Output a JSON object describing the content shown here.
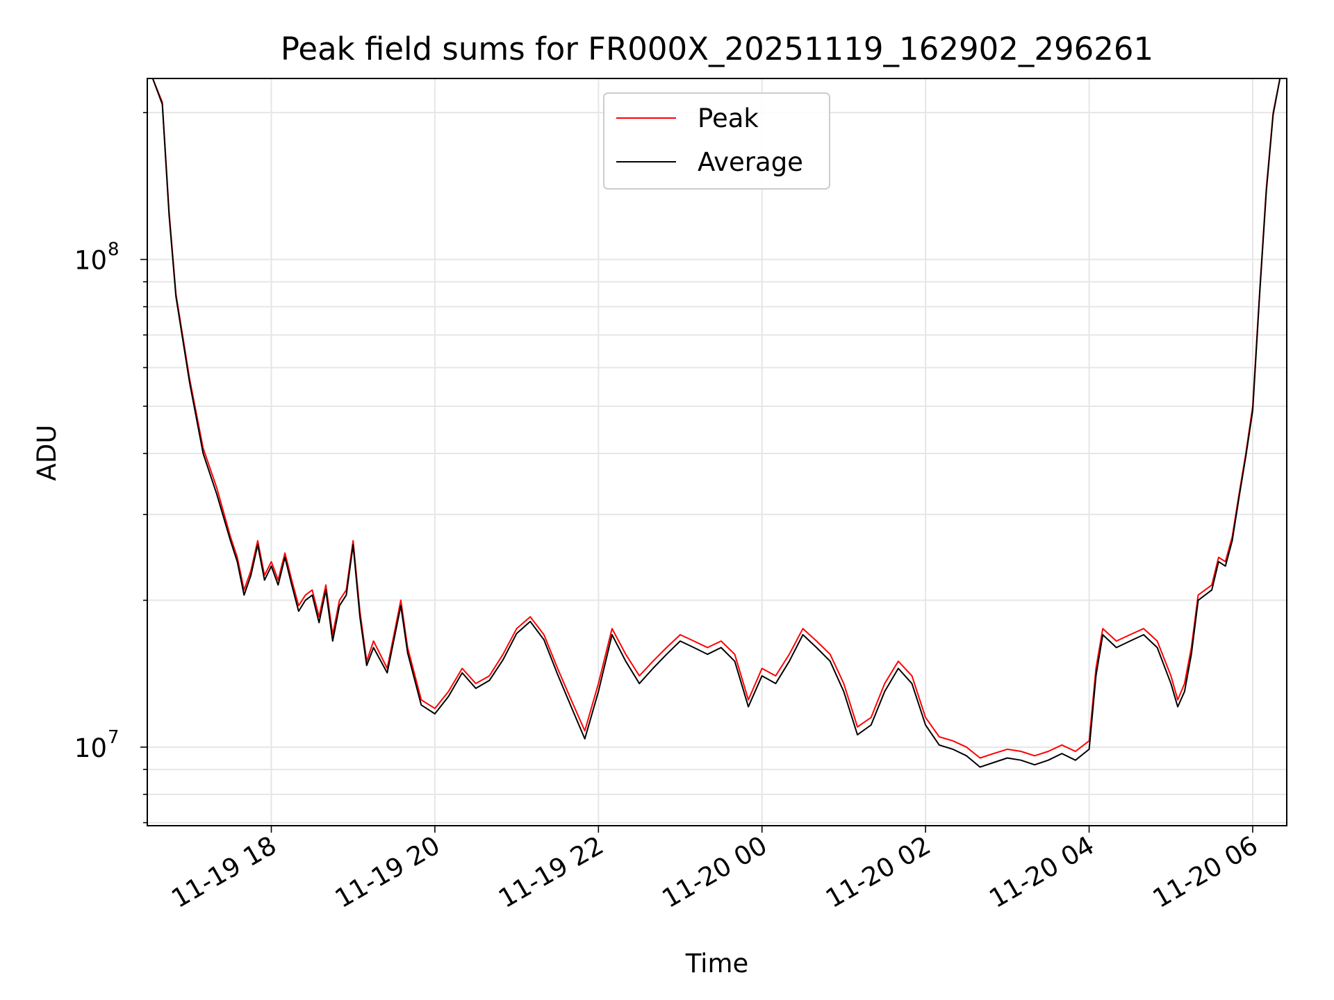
{
  "chart_data": {
    "type": "line",
    "title": "Peak field sums for FR000X_20251119_162902_296261",
    "xlabel": "Time",
    "ylabel": "ADU",
    "yscale": "log",
    "xlim": [
      "2025-11-19 16:29",
      "2025-11-20 06:25"
    ],
    "ylim": [
      6900000,
      235000000
    ],
    "x_ticks": [
      "2025-11-19 18:00",
      "2025-11-19 20:00",
      "2025-11-19 22:00",
      "2025-11-20 00:00",
      "2025-11-20 02:00",
      "2025-11-20 04:00",
      "2025-11-20 06:00"
    ],
    "x_tick_labels": [
      "11-19 18",
      "11-19 20",
      "11-19 22",
      "11-20 00",
      "11-20 02",
      "11-20 04",
      "11-20 06"
    ],
    "y_tick_labels": [
      {
        "value": 10000000,
        "mantissa": "10",
        "exponent": "7"
      },
      {
        "value": 100000000,
        "mantissa": "10",
        "exponent": "8"
      }
    ],
    "grid": true,
    "legend_position": "top-center",
    "series": [
      {
        "name": "Peak",
        "color": "#ff0000",
        "points": [
          [
            "2025-11-19 16:33",
            235000000
          ],
          [
            "2025-11-19 16:40",
            210000000
          ],
          [
            "2025-11-19 16:45",
            125000000
          ],
          [
            "2025-11-19 16:50",
            85000000
          ],
          [
            "2025-11-19 17:00",
            57000000
          ],
          [
            "2025-11-19 17:10",
            41000000
          ],
          [
            "2025-11-19 17:20",
            34000000
          ],
          [
            "2025-11-19 17:30",
            27000000
          ],
          [
            "2025-11-19 17:35",
            24500000
          ],
          [
            "2025-11-19 17:40",
            21000000
          ],
          [
            "2025-11-19 17:45",
            23000000
          ],
          [
            "2025-11-19 17:50",
            26500000
          ],
          [
            "2025-11-19 17:55",
            22500000
          ],
          [
            "2025-11-19 18:00",
            24000000
          ],
          [
            "2025-11-19 18:05",
            22000000
          ],
          [
            "2025-11-19 18:10",
            25000000
          ],
          [
            "2025-11-19 18:15",
            22000000
          ],
          [
            "2025-11-19 18:20",
            19500000
          ],
          [
            "2025-11-19 18:25",
            20500000
          ],
          [
            "2025-11-19 18:30",
            21000000
          ],
          [
            "2025-11-19 18:35",
            18500000
          ],
          [
            "2025-11-19 18:40",
            21500000
          ],
          [
            "2025-11-19 18:45",
            17000000
          ],
          [
            "2025-11-19 18:50",
            20000000
          ],
          [
            "2025-11-19 18:55",
            21000000
          ],
          [
            "2025-11-19 19:00",
            26500000
          ],
          [
            "2025-11-19 19:05",
            19000000
          ],
          [
            "2025-11-19 19:10",
            15000000
          ],
          [
            "2025-11-19 19:15",
            16500000
          ],
          [
            "2025-11-19 19:25",
            14500000
          ],
          [
            "2025-11-19 19:35",
            20000000
          ],
          [
            "2025-11-19 19:40",
            16000000
          ],
          [
            "2025-11-19 19:50",
            12500000
          ],
          [
            "2025-11-19 20:00",
            12000000
          ],
          [
            "2025-11-19 20:10",
            13000000
          ],
          [
            "2025-11-19 20:20",
            14500000
          ],
          [
            "2025-11-19 20:30",
            13500000
          ],
          [
            "2025-11-19 20:40",
            14000000
          ],
          [
            "2025-11-19 20:50",
            15500000
          ],
          [
            "2025-11-19 21:00",
            17500000
          ],
          [
            "2025-11-19 21:10",
            18500000
          ],
          [
            "2025-11-19 21:20",
            17000000
          ],
          [
            "2025-11-19 21:30",
            14500000
          ],
          [
            "2025-11-19 21:40",
            12500000
          ],
          [
            "2025-11-19 21:50",
            10800000
          ],
          [
            "2025-11-19 22:00",
            13500000
          ],
          [
            "2025-11-19 22:10",
            17500000
          ],
          [
            "2025-11-19 22:20",
            15500000
          ],
          [
            "2025-11-19 22:30",
            14000000
          ],
          [
            "2025-11-19 22:40",
            15000000
          ],
          [
            "2025-11-19 22:50",
            16000000
          ],
          [
            "2025-11-19 23:00",
            17000000
          ],
          [
            "2025-11-19 23:10",
            16500000
          ],
          [
            "2025-11-19 23:20",
            16000000
          ],
          [
            "2025-11-19 23:30",
            16500000
          ],
          [
            "2025-11-19 23:40",
            15500000
          ],
          [
            "2025-11-19 23:50",
            12500000
          ],
          [
            "2025-11-20 00:00",
            14500000
          ],
          [
            "2025-11-20 00:10",
            14000000
          ],
          [
            "2025-11-20 00:20",
            15500000
          ],
          [
            "2025-11-20 00:30",
            17500000
          ],
          [
            "2025-11-20 00:40",
            16500000
          ],
          [
            "2025-11-20 00:50",
            15500000
          ],
          [
            "2025-11-20 01:00",
            13500000
          ],
          [
            "2025-11-20 01:10",
            11000000
          ],
          [
            "2025-11-20 01:20",
            11500000
          ],
          [
            "2025-11-20 01:30",
            13500000
          ],
          [
            "2025-11-20 01:40",
            15000000
          ],
          [
            "2025-11-20 01:50",
            14000000
          ],
          [
            "2025-11-20 02:00",
            11500000
          ],
          [
            "2025-11-20 02:10",
            10500000
          ],
          [
            "2025-11-20 02:20",
            10300000
          ],
          [
            "2025-11-20 02:30",
            10000000
          ],
          [
            "2025-11-20 02:40",
            9500000
          ],
          [
            "2025-11-20 02:50",
            9700000
          ],
          [
            "2025-11-20 03:00",
            9900000
          ],
          [
            "2025-11-20 03:10",
            9800000
          ],
          [
            "2025-11-20 03:20",
            9600000
          ],
          [
            "2025-11-20 03:30",
            9800000
          ],
          [
            "2025-11-20 03:40",
            10100000
          ],
          [
            "2025-11-20 03:50",
            9800000
          ],
          [
            "2025-11-20 04:00",
            10300000
          ],
          [
            "2025-11-20 04:05",
            14500000
          ],
          [
            "2025-11-20 04:10",
            17500000
          ],
          [
            "2025-11-20 04:20",
            16500000
          ],
          [
            "2025-11-20 04:30",
            17000000
          ],
          [
            "2025-11-20 04:40",
            17500000
          ],
          [
            "2025-11-20 04:50",
            16500000
          ],
          [
            "2025-11-20 05:00",
            14000000
          ],
          [
            "2025-11-20 05:05",
            12500000
          ],
          [
            "2025-11-20 05:10",
            13500000
          ],
          [
            "2025-11-20 05:15",
            16000000
          ],
          [
            "2025-11-20 05:20",
            20500000
          ],
          [
            "2025-11-20 05:30",
            21500000
          ],
          [
            "2025-11-20 05:35",
            24500000
          ],
          [
            "2025-11-20 05:40",
            24000000
          ],
          [
            "2025-11-20 05:45",
            27000000
          ],
          [
            "2025-11-20 05:50",
            33000000
          ],
          [
            "2025-11-20 05:55",
            40000000
          ],
          [
            "2025-11-20 06:00",
            50000000
          ],
          [
            "2025-11-20 06:05",
            85000000
          ],
          [
            "2025-11-20 06:10",
            140000000
          ],
          [
            "2025-11-20 06:15",
            200000000
          ],
          [
            "2025-11-20 06:20",
            235000000
          ]
        ]
      },
      {
        "name": "Average",
        "color": "#000000",
        "points": [
          [
            "2025-11-19 16:33",
            235000000
          ],
          [
            "2025-11-19 16:40",
            208000000
          ],
          [
            "2025-11-19 16:45",
            123000000
          ],
          [
            "2025-11-19 16:50",
            84000000
          ],
          [
            "2025-11-19 17:00",
            56000000
          ],
          [
            "2025-11-19 17:10",
            40000000
          ],
          [
            "2025-11-19 17:20",
            33000000
          ],
          [
            "2025-11-19 17:30",
            26500000
          ],
          [
            "2025-11-19 17:35",
            24000000
          ],
          [
            "2025-11-19 17:40",
            20500000
          ],
          [
            "2025-11-19 17:45",
            22500000
          ],
          [
            "2025-11-19 17:50",
            26000000
          ],
          [
            "2025-11-19 17:55",
            22000000
          ],
          [
            "2025-11-19 18:00",
            23500000
          ],
          [
            "2025-11-19 18:05",
            21500000
          ],
          [
            "2025-11-19 18:10",
            24500000
          ],
          [
            "2025-11-19 18:15",
            21500000
          ],
          [
            "2025-11-19 18:20",
            19000000
          ],
          [
            "2025-11-19 18:25",
            20000000
          ],
          [
            "2025-11-19 18:30",
            20500000
          ],
          [
            "2025-11-19 18:35",
            18000000
          ],
          [
            "2025-11-19 18:40",
            21000000
          ],
          [
            "2025-11-19 18:45",
            16500000
          ],
          [
            "2025-11-19 18:50",
            19500000
          ],
          [
            "2025-11-19 18:55",
            20500000
          ],
          [
            "2025-11-19 19:00",
            26000000
          ],
          [
            "2025-11-19 19:05",
            18500000
          ],
          [
            "2025-11-19 19:10",
            14700000
          ],
          [
            "2025-11-19 19:15",
            16000000
          ],
          [
            "2025-11-19 19:25",
            14200000
          ],
          [
            "2025-11-19 19:35",
            19500000
          ],
          [
            "2025-11-19 19:40",
            15600000
          ],
          [
            "2025-11-19 19:50",
            12200000
          ],
          [
            "2025-11-19 20:00",
            11700000
          ],
          [
            "2025-11-19 20:10",
            12700000
          ],
          [
            "2025-11-19 20:20",
            14200000
          ],
          [
            "2025-11-19 20:30",
            13200000
          ],
          [
            "2025-11-19 20:40",
            13700000
          ],
          [
            "2025-11-19 20:50",
            15100000
          ],
          [
            "2025-11-19 21:00",
            17100000
          ],
          [
            "2025-11-19 21:10",
            18100000
          ],
          [
            "2025-11-19 21:20",
            16600000
          ],
          [
            "2025-11-19 21:30",
            14100000
          ],
          [
            "2025-11-19 21:40",
            12100000
          ],
          [
            "2025-11-19 21:50",
            10400000
          ],
          [
            "2025-11-19 22:00",
            13000000
          ],
          [
            "2025-11-19 22:10",
            17000000
          ],
          [
            "2025-11-19 22:20",
            15000000
          ],
          [
            "2025-11-19 22:30",
            13500000
          ],
          [
            "2025-11-19 22:40",
            14500000
          ],
          [
            "2025-11-19 22:50",
            15500000
          ],
          [
            "2025-11-19 23:00",
            16500000
          ],
          [
            "2025-11-19 23:10",
            16000000
          ],
          [
            "2025-11-19 23:20",
            15500000
          ],
          [
            "2025-11-19 23:30",
            16000000
          ],
          [
            "2025-11-19 23:40",
            15000000
          ],
          [
            "2025-11-19 23:50",
            12100000
          ],
          [
            "2025-11-20 00:00",
            14000000
          ],
          [
            "2025-11-20 00:10",
            13500000
          ],
          [
            "2025-11-20 00:20",
            15000000
          ],
          [
            "2025-11-20 00:30",
            17000000
          ],
          [
            "2025-11-20 00:40",
            16000000
          ],
          [
            "2025-11-20 00:50",
            15000000
          ],
          [
            "2025-11-20 01:00",
            13000000
          ],
          [
            "2025-11-20 01:10",
            10600000
          ],
          [
            "2025-11-20 01:20",
            11100000
          ],
          [
            "2025-11-20 01:30",
            13000000
          ],
          [
            "2025-11-20 01:40",
            14500000
          ],
          [
            "2025-11-20 01:50",
            13500000
          ],
          [
            "2025-11-20 02:00",
            11100000
          ],
          [
            "2025-11-20 02:10",
            10100000
          ],
          [
            "2025-11-20 02:20",
            9900000
          ],
          [
            "2025-11-20 02:30",
            9600000
          ],
          [
            "2025-11-20 02:40",
            9100000
          ],
          [
            "2025-11-20 02:50",
            9300000
          ],
          [
            "2025-11-20 03:00",
            9500000
          ],
          [
            "2025-11-20 03:10",
            9400000
          ],
          [
            "2025-11-20 03:20",
            9200000
          ],
          [
            "2025-11-20 03:30",
            9400000
          ],
          [
            "2025-11-20 03:40",
            9700000
          ],
          [
            "2025-11-20 03:50",
            9400000
          ],
          [
            "2025-11-20 04:00",
            9900000
          ],
          [
            "2025-11-20 04:05",
            14000000
          ],
          [
            "2025-11-20 04:10",
            17000000
          ],
          [
            "2025-11-20 04:20",
            16000000
          ],
          [
            "2025-11-20 04:30",
            16500000
          ],
          [
            "2025-11-20 04:40",
            17000000
          ],
          [
            "2025-11-20 04:50",
            16000000
          ],
          [
            "2025-11-20 05:00",
            13500000
          ],
          [
            "2025-11-20 05:05",
            12100000
          ],
          [
            "2025-11-20 05:10",
            13000000
          ],
          [
            "2025-11-20 05:15",
            15500000
          ],
          [
            "2025-11-20 05:20",
            20000000
          ],
          [
            "2025-11-20 05:30",
            21000000
          ],
          [
            "2025-11-20 05:35",
            24000000
          ],
          [
            "2025-11-20 05:40",
            23500000
          ],
          [
            "2025-11-20 05:45",
            26500000
          ],
          [
            "2025-11-20 05:50",
            32500000
          ],
          [
            "2025-11-20 05:55",
            39500000
          ],
          [
            "2025-11-20 06:00",
            49000000
          ],
          [
            "2025-11-20 06:05",
            84000000
          ],
          [
            "2025-11-20 06:10",
            138000000
          ],
          [
            "2025-11-20 06:15",
            198000000
          ],
          [
            "2025-11-20 06:20",
            235000000
          ]
        ]
      }
    ]
  }
}
